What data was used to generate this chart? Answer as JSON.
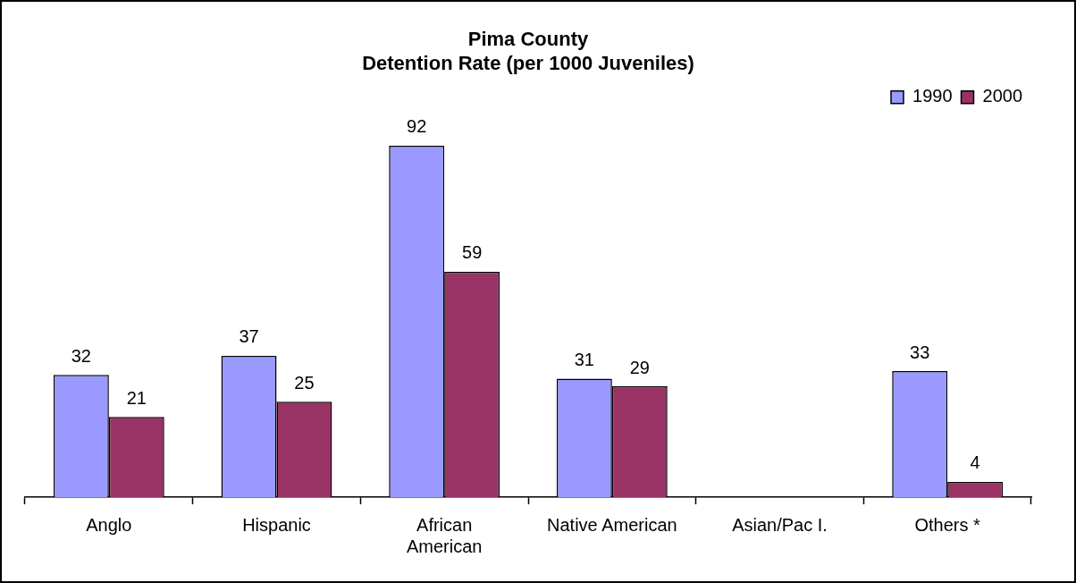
{
  "chart_data": {
    "type": "bar",
    "title": "Pima County\nDetention Rate (per 1000 Juveniles)",
    "categories": [
      "Anglo",
      "Hispanic",
      "African American",
      "Native American",
      "Asian/Pac I.",
      "Others *"
    ],
    "series": [
      {
        "name": "1990",
        "color": "#9999ff",
        "values": [
          32,
          37,
          92,
          31,
          null,
          33
        ]
      },
      {
        "name": "2000",
        "color": "#993366",
        "values": [
          21,
          25,
          59,
          29,
          null,
          4
        ]
      }
    ],
    "tick_labels": "x",
    "data_labels": true,
    "legend": "top right",
    "grid": false
  }
}
